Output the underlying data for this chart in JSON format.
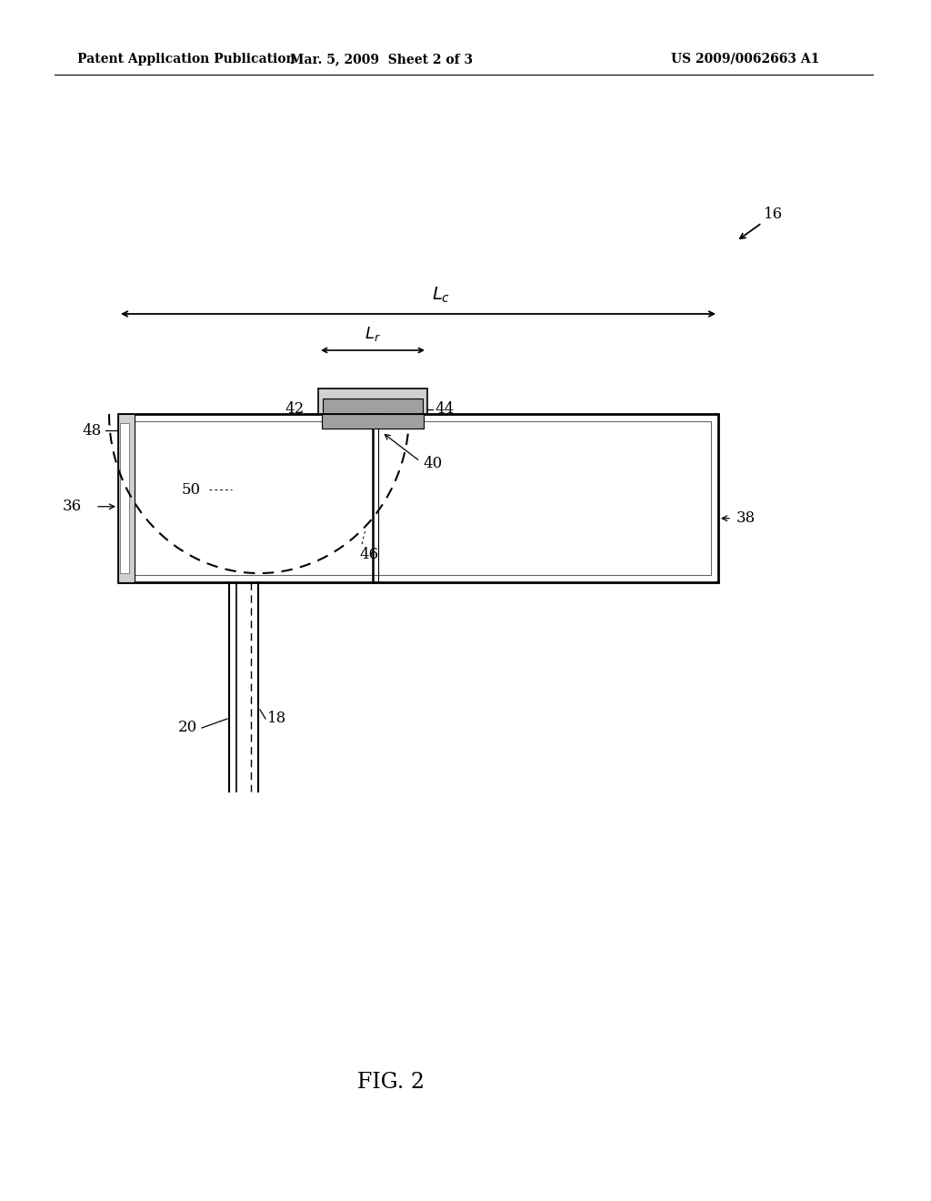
{
  "bg_color": "#ffffff",
  "header_left": "Patent Application Publication",
  "header_mid": "Mar. 5, 2009  Sheet 2 of 3",
  "header_right": "US 2009/0062663 A1",
  "fig_label": "FIG. 2",
  "line_color": "#000000",
  "gray_light": "#d0d0d0",
  "gray_med": "#a0a0a0",
  "gray_dark": "#707070"
}
